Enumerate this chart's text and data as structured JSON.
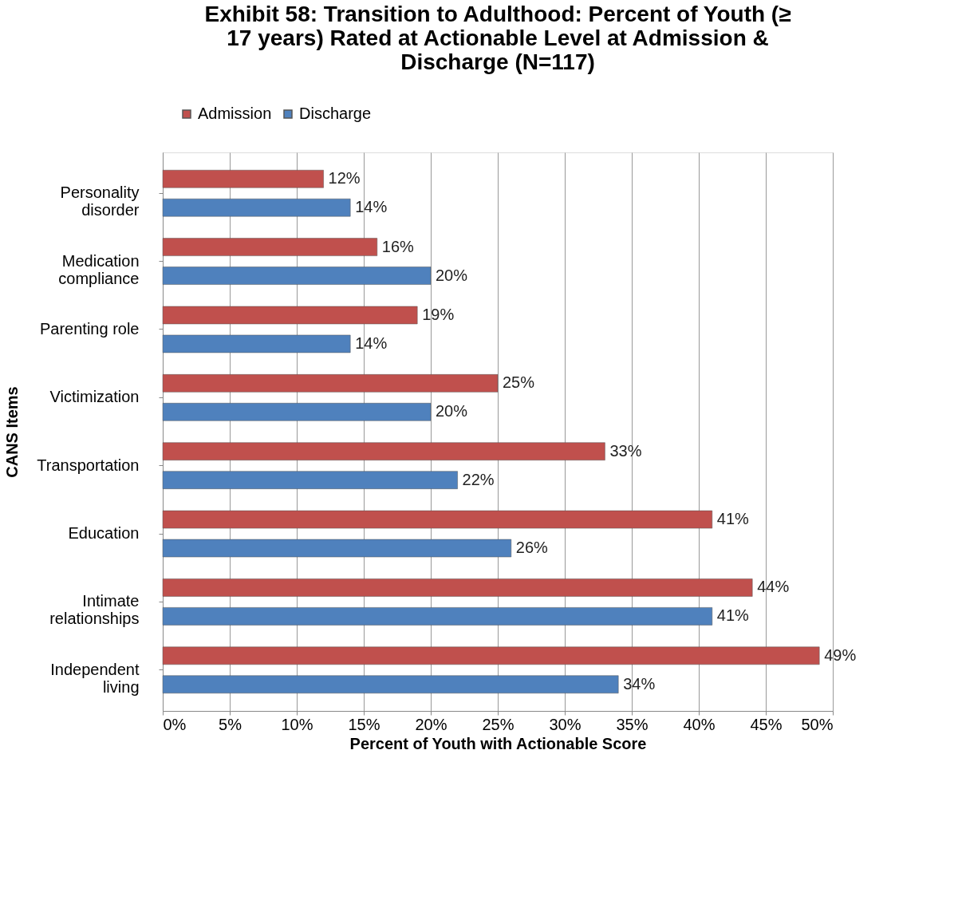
{
  "chart_data": {
    "type": "bar",
    "orientation": "horizontal",
    "title": "Exhibit 58: Transition to Adulthood: Percent of Youth (≥ 17 years) Rated at Actionable Level at Admission & Discharge (N=117)",
    "xlabel": "Percent of Youth with Actionable Score",
    "ylabel": "CANS Items",
    "categories": [
      "Personality disorder",
      "Medication compliance",
      "Parenting role",
      "Victimization",
      "Transportation",
      "Education",
      "Intimate relationships",
      "Independent living"
    ],
    "series": [
      {
        "name": "Admission",
        "color": "#c0504d",
        "values": [
          12,
          16,
          19,
          25,
          33,
          41,
          44,
          49
        ],
        "value_labels": [
          "12%",
          "16%",
          "19%",
          "25%",
          "33%",
          "41%",
          "44%",
          "49%"
        ]
      },
      {
        "name": "Discharge",
        "color": "#4f81bd",
        "values": [
          14,
          20,
          14,
          20,
          22,
          26,
          41,
          34
        ],
        "value_labels": [
          "14%",
          "20%",
          "14%",
          "20%",
          "22%",
          "26%",
          "41%",
          "34%"
        ]
      }
    ],
    "xlim": [
      0,
      50
    ],
    "xticks": [
      {
        "value": 0,
        "label": "0%"
      },
      {
        "value": 5,
        "label": "5%"
      },
      {
        "value": 10,
        "label": "10%"
      },
      {
        "value": 15,
        "label": "15%"
      },
      {
        "value": 20,
        "label": "20%"
      },
      {
        "value": 25,
        "label": "25%"
      },
      {
        "value": 30,
        "label": "30%"
      },
      {
        "value": 35,
        "label": "35%"
      },
      {
        "value": 40,
        "label": "40%"
      },
      {
        "value": 45,
        "label": "45%"
      },
      {
        "value": 50,
        "label": "50%"
      }
    ],
    "grid": "x",
    "legend": "top"
  }
}
